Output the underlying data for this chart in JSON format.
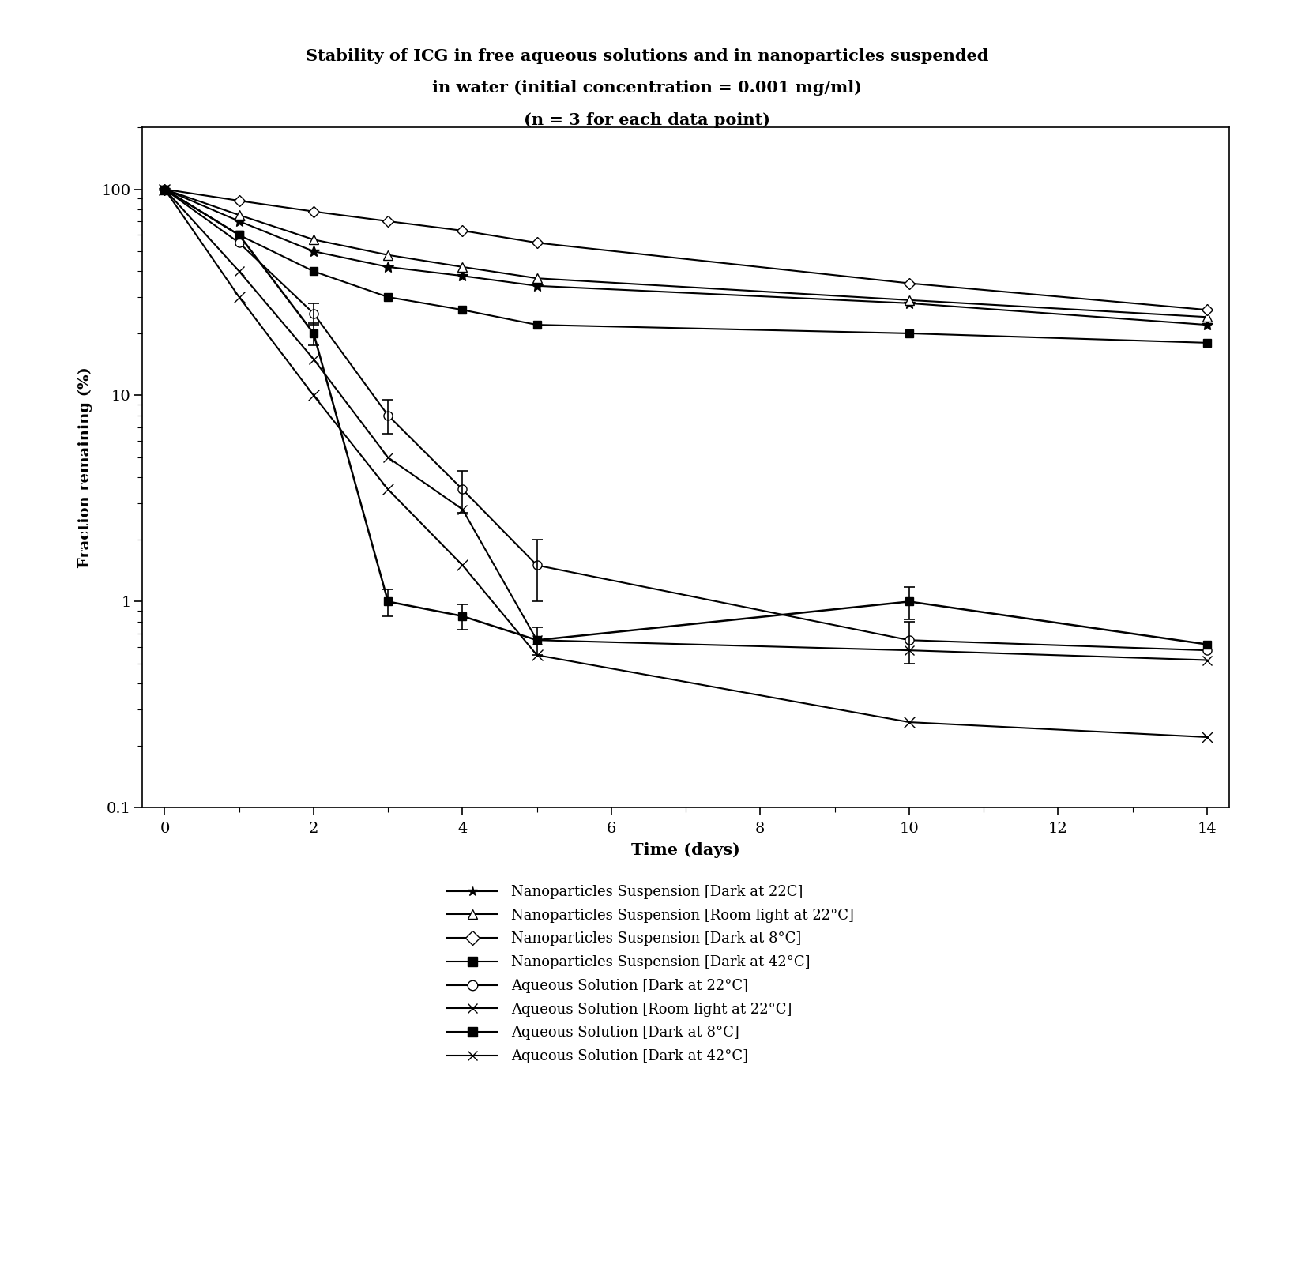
{
  "title_line1": "Stability of ICG in free aqueous solutions and in nanoparticles suspended",
  "title_line2": "in water (initial concentration = 0.001 mg/ml)",
  "title_line3": "(n = 3 for each data point)",
  "xlabel": "Time (days)",
  "ylabel": "Fraction remaining (%)",
  "xlim": [
    0,
    14
  ],
  "ylim_log": [
    0.1,
    200
  ],
  "yticks": [
    0.1,
    1,
    10,
    100
  ],
  "xticks": [
    0,
    2,
    4,
    6,
    8,
    10,
    12,
    14
  ],
  "series": [
    {
      "label": "Nanoparticles Suspension [Dark at 22C]",
      "x": [
        0,
        1,
        2,
        3,
        4,
        5,
        10,
        14
      ],
      "y": [
        100,
        70,
        50,
        42,
        38,
        34,
        28,
        22
      ],
      "yerr": [
        0,
        0,
        0,
        0,
        0,
        0,
        0,
        0
      ],
      "marker": "*",
      "markersize": 10,
      "linewidth": 1.5,
      "linestyle": "-",
      "filled": true
    },
    {
      "label": "Nanoparticles Suspension [Room light at 22°C]",
      "x": [
        0,
        1,
        2,
        3,
        4,
        5,
        10,
        14
      ],
      "y": [
        100,
        75,
        57,
        48,
        42,
        37,
        29,
        24
      ],
      "yerr": [
        0,
        0,
        0,
        0,
        0,
        0,
        0,
        0
      ],
      "marker": "^",
      "markersize": 8,
      "linewidth": 1.5,
      "linestyle": "-",
      "filled": false
    },
    {
      "label": "Nanoparticles Suspension [Dark at 8°C]",
      "x": [
        0,
        1,
        2,
        3,
        4,
        5,
        10,
        14
      ],
      "y": [
        100,
        88,
        78,
        70,
        63,
        55,
        35,
        26
      ],
      "yerr": [
        0,
        0,
        0,
        0,
        0,
        0,
        0,
        0
      ],
      "marker": "D",
      "markersize": 7,
      "linewidth": 1.5,
      "linestyle": "-",
      "filled": false
    },
    {
      "label": "Nanoparticles Suspension [Dark at 42°C]",
      "x": [
        0,
        1,
        2,
        3,
        4,
        5,
        10,
        14
      ],
      "y": [
        100,
        60,
        40,
        30,
        26,
        22,
        20,
        18
      ],
      "yerr": [
        0,
        0,
        0,
        0,
        0,
        0,
        0,
        0
      ],
      "marker": "s",
      "markersize": 7,
      "linewidth": 1.5,
      "linestyle": "-",
      "filled": true
    },
    {
      "label": "Aqueous Solution [Dark at 22°C]",
      "x": [
        0,
        1,
        2,
        3,
        4,
        5,
        10,
        14
      ],
      "y": [
        100,
        55,
        25,
        8,
        3.5,
        1.5,
        0.65,
        0.58
      ],
      "yerr": [
        0,
        0,
        3,
        1.5,
        0.8,
        0.5,
        0.15,
        0
      ],
      "marker": "o",
      "markersize": 8,
      "linewidth": 1.5,
      "linestyle": "-",
      "filled": false
    },
    {
      "label": "Aqueous Solution [Room light at 22°C]",
      "x": [
        0,
        1,
        2,
        3,
        4,
        5,
        10,
        14
      ],
      "y": [
        100,
        40,
        15,
        5,
        2.8,
        0.65,
        0.58,
        0.52
      ],
      "yerr": [
        0,
        0,
        0,
        0,
        0,
        0,
        0,
        0
      ],
      "marker": "x",
      "markersize": 9,
      "linewidth": 1.5,
      "linestyle": "-",
      "filled": true
    },
    {
      "label": "Aqueous Solution [Dark at 8°C]",
      "x": [
        0,
        1,
        2,
        3,
        4,
        5,
        10,
        14
      ],
      "y": [
        100,
        60,
        20,
        1.0,
        0.85,
        0.65,
        1.0,
        0.62
      ],
      "yerr": [
        0,
        0,
        2.5,
        0.15,
        0.12,
        0.1,
        0.18,
        0
      ],
      "marker": "s",
      "markersize": 7,
      "linewidth": 1.8,
      "linestyle": "-",
      "filled": true
    },
    {
      "label": "Aqueous Solution [Dark at 42°C]",
      "x": [
        0,
        1,
        2,
        3,
        4,
        5,
        10,
        14
      ],
      "y": [
        100,
        30,
        10,
        3.5,
        1.5,
        0.55,
        0.26,
        0.22
      ],
      "yerr": [
        0,
        0,
        0,
        0,
        0,
        0,
        0,
        0
      ],
      "marker": "x",
      "markersize": 10,
      "linewidth": 1.5,
      "linestyle": "-",
      "filled": true
    }
  ],
  "legend_entries": [
    {
      "marker": "*",
      "filled": true,
      "label": "Nanoparticles Suspension [Dark at 22C]"
    },
    {
      "marker": "^",
      "filled": false,
      "label": "Nanoparticles Suspension [Room light at 22°C]"
    },
    {
      "marker": "D",
      "filled": false,
      "label": "Nanoparticles Suspension [Dark at 8°C]"
    },
    {
      "marker": "s",
      "filled": true,
      "label": "Nanoparticles Suspension [Dark at 42°C]"
    },
    {
      "marker": "o",
      "filled": false,
      "label": "Aqueous Solution [Dark at 22°C]"
    },
    {
      "marker": "x",
      "filled": true,
      "label": "Aqueous Solution [Room light at 22°C]"
    },
    {
      "marker": "s",
      "filled": true,
      "label": "Aqueous Solution [Dark at 8°C]"
    },
    {
      "marker": "x",
      "filled": true,
      "label": "Aqueous Solution [Dark at 42°C]"
    }
  ]
}
